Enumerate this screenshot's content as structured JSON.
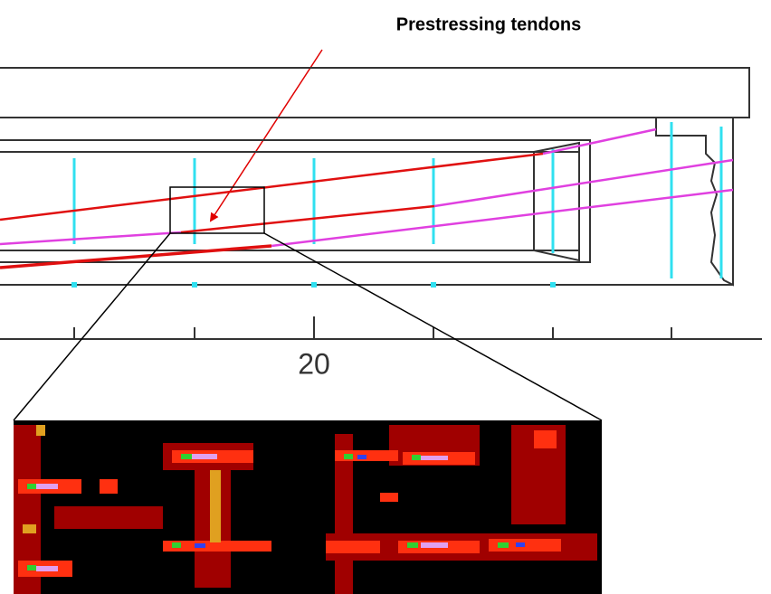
{
  "annotation": {
    "label": "Prestressing tendons"
  },
  "axis": {
    "tick_label": "20"
  }
}
